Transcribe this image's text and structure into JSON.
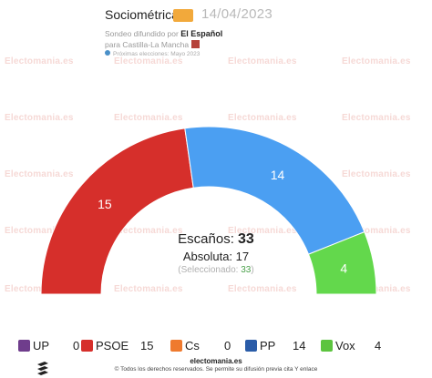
{
  "header": {
    "pollster": "Sociométrica",
    "date": "14/04/2023",
    "published_prefix": "Sondeo difundido por",
    "publisher": "El Español",
    "scope": "para Castilla-La Mancha",
    "next_election": "Próximas elecciones: Mayo 2023"
  },
  "watermark": "Electomania.es",
  "center": {
    "seats_label": "Escaños:",
    "seats_total": "33",
    "majority_label": "Absoluta:",
    "majority_value": "17",
    "selected_prefix": "(Seleccionado:",
    "selected_value": "33",
    "selected_suffix": ")"
  },
  "chart_data": {
    "type": "pie",
    "subtype": "parliament-hemicycle",
    "total_seats": 33,
    "majority": 17,
    "series": [
      {
        "name": "UP",
        "values": [
          0
        ],
        "color": "#6f3d8c",
        "icon": "up-logo-icon"
      },
      {
        "name": "PSOE",
        "values": [
          15
        ],
        "color": "#d62f2b",
        "icon": "psoe-logo-icon"
      },
      {
        "name": "Cs",
        "values": [
          0
        ],
        "color": "#ef7a2e",
        "icon": "cs-logo-icon"
      },
      {
        "name": "PP",
        "values": [
          14
        ],
        "color": "#4b9ff2",
        "icon": "pp-logo-icon"
      },
      {
        "name": "Vox",
        "values": [
          4
        ],
        "color": "#63d84c",
        "icon": "vox-logo-icon"
      }
    ],
    "arc_labels": [
      "15",
      "14",
      "4"
    ]
  },
  "legend": [
    {
      "name": "UP",
      "value": "0",
      "color": "#6f3d8c"
    },
    {
      "name": "PSOE",
      "value": "15",
      "color": "#d62f2b"
    },
    {
      "name": "Cs",
      "value": "0",
      "color": "#ef7a2e"
    },
    {
      "name": "PP",
      "value": "14",
      "color": "#2a5ca8"
    },
    {
      "name": "Vox",
      "value": "4",
      "color": "#5cc43f"
    }
  ],
  "footer": {
    "site": "electomania.es",
    "copyright": "© Todos los derechos reservados. Se permite su difusión previa cita Y enlace"
  }
}
